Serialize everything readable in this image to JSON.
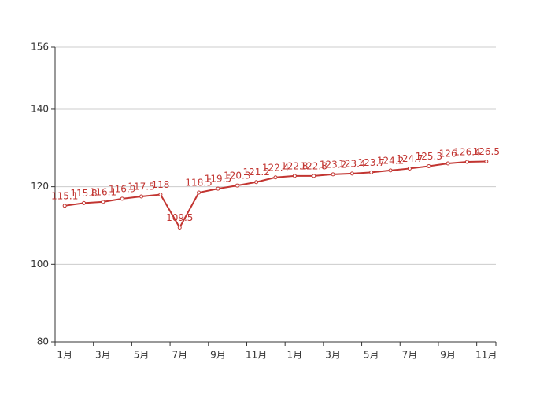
{
  "chart_data": {
    "type": "line",
    "categories": [
      "1月",
      null,
      "3月",
      null,
      "5月",
      null,
      "7月",
      null,
      "9月",
      null,
      "11月",
      null,
      "1月",
      null,
      "3月",
      null,
      "5月",
      null,
      "7月",
      null,
      "9月",
      null,
      "11月"
    ],
    "values": [
      115.1,
      115.8,
      116.1,
      116.9,
      117.5,
      118,
      109.5,
      118.5,
      119.5,
      120.3,
      121.2,
      122.4,
      122.8,
      122.8,
      123.2,
      123.4,
      123.7,
      124.2,
      124.7,
      125.3,
      126,
      126.4,
      126.5
    ],
    "color": "#c23531",
    "ylim": [
      80,
      156
    ],
    "yticks": [
      80,
      100,
      120,
      140,
      156
    ],
    "grid": true
  }
}
